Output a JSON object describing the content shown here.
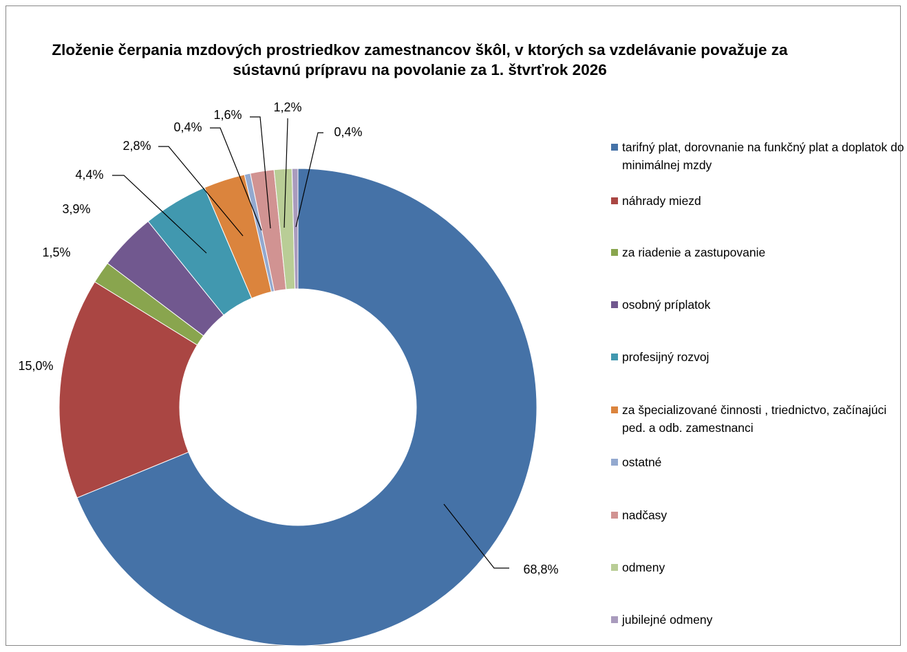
{
  "chart_data": {
    "type": "pie",
    "title": "Zloženie čerpania mzdových prostriedkov zamestnancov škôl, v ktorých sa vzdelávanie považuje za sústavnú prípravu na povolanie za 1. štvrťrok 2026",
    "categories": [
      "tarifný plat, dorovnanie na funkčný plat a doplatok do minimálnej mzdy",
      "náhrady miezd",
      "za riadenie a zastupovanie",
      "osobný príplatok",
      "profesijný rozvoj",
      "za špecializované činnosti , triednictvo, začínajúci ped. a odb. zamestnanci",
      "ostatné",
      "nadčasy",
      "odmeny",
      "jubilejné odmeny"
    ],
    "values": [
      68.8,
      15.0,
      1.5,
      3.9,
      4.4,
      2.8,
      0.4,
      1.6,
      1.2,
      0.4
    ],
    "value_labels": [
      "68,8%",
      "15,0%",
      "1,5%",
      "3,9%",
      "4,4%",
      "2,8%",
      "0,4%",
      "1,6%",
      "1,2%",
      "0,4%"
    ],
    "colors": [
      "#4572a7",
      "#aa4643",
      "#89a54e",
      "#71588f",
      "#4198af",
      "#db843d",
      "#93a9cf",
      "#d19392",
      "#b9cd96",
      "#a99bbd"
    ],
    "legend": "right"
  }
}
